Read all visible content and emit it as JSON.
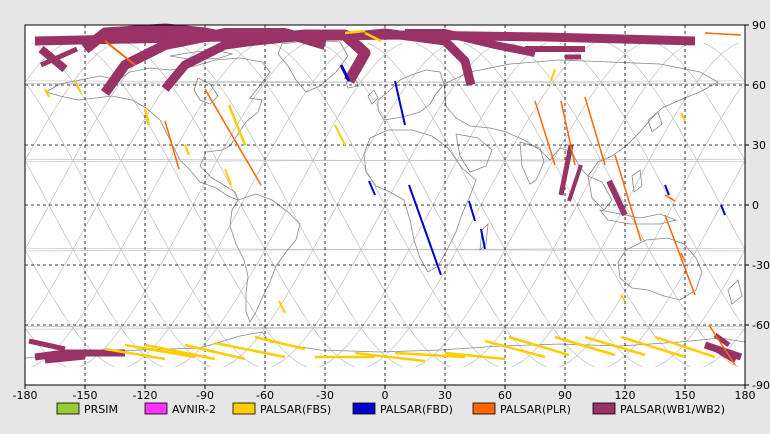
{
  "map": {
    "x_ticks": [
      "-180",
      "-150",
      "-120",
      "-90",
      "-60",
      "-30",
      "0",
      "30",
      "60",
      "90",
      "120",
      "150",
      "180"
    ],
    "y_ticks": [
      "90",
      "60",
      "30",
      "0",
      "-30",
      "-60",
      "-90"
    ],
    "grid": true,
    "colors": {
      "background": "#e6e6e6",
      "plot_area": "#ffffff",
      "grid": "#000000",
      "orbit": "#c0c0c0",
      "coast": "#888888"
    }
  },
  "legend": {
    "items": [
      {
        "label": "PRSIM",
        "color": "#99cc33"
      },
      {
        "label": "AVNIR-2",
        "color": "#ff33ff"
      },
      {
        "label": "PALSAR(FBS)",
        "color": "#ffcc00"
      },
      {
        "label": "PALSAR(FBD)",
        "color": "#0000cc"
      },
      {
        "label": "PALSAR(PLR)",
        "color": "#ff6600"
      },
      {
        "label": "PALSAR(WB1/WB2)",
        "color": "#993366"
      }
    ]
  },
  "chart_data": {
    "type": "scatter",
    "xlim": [
      -180,
      180
    ],
    "ylim": [
      -90,
      90
    ],
    "series": [
      {
        "name": "PALSAR(WB1/WB2)",
        "color": "#993366",
        "swaths": [
          {
            "points": [
              [
                -175,
                82
              ],
              [
                -80,
                84
              ],
              [
                10,
                85
              ],
              [
                80,
                84
              ],
              [
                155,
                82
              ]
            ],
            "width": 9
          },
          {
            "points": [
              [
                -150,
                78
              ],
              [
                -140,
                86
              ],
              [
                -110,
                88
              ],
              [
                -90,
                86
              ],
              [
                -70,
                82
              ],
              [
                -40,
                85
              ],
              [
                -20,
                85
              ],
              [
                -10,
                76
              ],
              [
                -18,
                62
              ]
            ],
            "width": 11
          },
          {
            "points": [
              [
                -140,
                56
              ],
              [
                -130,
                70
              ],
              [
                -110,
                80
              ],
              [
                -80,
                86
              ],
              [
                -50,
                86
              ],
              [
                -30,
                80
              ]
            ],
            "width": 10
          },
          {
            "points": [
              [
                -110,
                58
              ],
              [
                -100,
                70
              ],
              [
                -80,
                80
              ],
              [
                -50,
                84
              ],
              [
                -30,
                84
              ]
            ],
            "width": 9
          },
          {
            "points": [
              [
                -20,
                84
              ],
              [
                0,
                86
              ],
              [
                30,
                82
              ],
              [
                40,
                72
              ],
              [
                43,
                60
              ]
            ],
            "width": 9
          },
          {
            "points": [
              [
                10,
                86
              ],
              [
                30,
                86
              ],
              [
                55,
                80
              ],
              [
                75,
                76
              ]
            ],
            "width": 8
          },
          {
            "points": [
              [
                70,
                78
              ],
              [
                100,
                78
              ]
            ],
            "width": 6
          },
          {
            "points": [
              [
                90,
                74
              ],
              [
                98,
                74
              ]
            ],
            "width": 5
          },
          {
            "points": [
              [
                -172,
                78
              ],
              [
                -160,
                68
              ]
            ],
            "width": 8
          },
          {
            "points": [
              [
                -154,
                78
              ],
              [
                -172,
                70
              ]
            ],
            "width": 5
          },
          {
            "points": [
              [
                93,
                30
              ],
              [
                88,
                5
              ]
            ],
            "width": 5
          },
          {
            "points": [
              [
                98,
                20
              ],
              [
                92,
                2
              ]
            ],
            "width": 4
          },
          {
            "points": [
              [
                112,
                12
              ],
              [
                120,
                -5
              ]
            ],
            "width": 6
          },
          {
            "points": [
              [
                -178,
                -68
              ],
              [
                -160,
                -72
              ]
            ],
            "width": 5
          },
          {
            "points": [
              [
                -175,
                -76
              ],
              [
                -160,
                -74
              ],
              [
                -130,
                -74
              ]
            ],
            "width": 7
          },
          {
            "points": [
              [
                -170,
                -78
              ],
              [
                -150,
                -76
              ]
            ],
            "width": 5
          },
          {
            "points": [
              [
                165,
                -65
              ],
              [
                172,
                -70
              ]
            ],
            "width": 5
          },
          {
            "points": [
              [
                160,
                -70
              ],
              [
                178,
                -76
              ]
            ],
            "width": 7
          },
          {
            "points": [
              [
                165,
                -72
              ],
              [
                175,
                -78
              ]
            ],
            "width": 5
          }
        ]
      },
      {
        "name": "PALSAR(FBS)",
        "color": "#ffcc00",
        "swaths": [
          {
            "points": [
              [
                -140,
                -72
              ],
              [
                -110,
                -77
              ]
            ],
            "width": 2.5
          },
          {
            "points": [
              [
                -130,
                -70
              ],
              [
                -95,
                -76
              ]
            ],
            "width": 2.5
          },
          {
            "points": [
              [
                -120,
                -70
              ],
              [
                -85,
                -77
              ]
            ],
            "width": 2.5
          },
          {
            "points": [
              [
                -100,
                -70
              ],
              [
                -70,
                -77
              ]
            ],
            "width": 2.5
          },
          {
            "points": [
              [
                -85,
                -69
              ],
              [
                -50,
                -76
              ]
            ],
            "width": 2.5
          },
          {
            "points": [
              [
                -65,
                -66
              ],
              [
                -40,
                -72
              ]
            ],
            "width": 2.5
          },
          {
            "points": [
              [
                -35,
                -76
              ],
              [
                -5,
                -76
              ]
            ],
            "width": 2.5
          },
          {
            "points": [
              [
                -15,
                -74
              ],
              [
                20,
                -78
              ]
            ],
            "width": 2.5
          },
          {
            "points": [
              [
                5,
                -74
              ],
              [
                40,
                -76
              ]
            ],
            "width": 2.5
          },
          {
            "points": [
              [
                30,
                -74
              ],
              [
                60,
                -77
              ]
            ],
            "width": 2.5
          },
          {
            "points": [
              [
                50,
                -68
              ],
              [
                80,
                -76
              ]
            ],
            "width": 2.5
          },
          {
            "points": [
              [
                62,
                -66
              ],
              [
                92,
                -75
              ]
            ],
            "width": 2.5
          },
          {
            "points": [
              [
                85,
                -66
              ],
              [
                115,
                -75
              ]
            ],
            "width": 2.5
          },
          {
            "points": [
              [
                100,
                -66
              ],
              [
                130,
                -75
              ]
            ],
            "width": 2.5
          },
          {
            "points": [
              [
                118,
                -66
              ],
              [
                150,
                -76
              ]
            ],
            "width": 2.5
          },
          {
            "points": [
              [
                135,
                -66
              ],
              [
                165,
                -76
              ]
            ],
            "width": 2.5
          },
          {
            "points": [
              [
                -20,
                86
              ],
              [
                -10,
                87
              ]
            ],
            "width": 2.5
          },
          {
            "points": [
              [
                -10,
                86
              ],
              [
                -2,
                82
              ]
            ],
            "width": 2.5
          },
          {
            "points": [
              [
                -78,
                50
              ],
              [
                -70,
                30
              ]
            ],
            "width": 2.5
          },
          {
            "points": [
              [
                -120,
                48
              ],
              [
                -118,
                40
              ]
            ],
            "width": 2.5
          },
          {
            "points": [
              [
                -155,
                62
              ],
              [
                -152,
                56
              ]
            ],
            "width": 2
          },
          {
            "points": [
              [
                -170,
                58
              ],
              [
                -168,
                54
              ]
            ],
            "width": 2
          },
          {
            "points": [
              [
                -100,
                30
              ],
              [
                -98,
                25
              ]
            ],
            "width": 2
          },
          {
            "points": [
              [
                -80,
                18
              ],
              [
                -77,
                10
              ]
            ],
            "width": 2
          },
          {
            "points": [
              [
                -25,
                40
              ],
              [
                -20,
                30
              ]
            ],
            "width": 2
          },
          {
            "points": [
              [
                85,
                68
              ],
              [
                83,
                62
              ]
            ],
            "width": 2
          },
          {
            "points": [
              [
                148,
                46
              ],
              [
                150,
                42
              ]
            ],
            "width": 2
          },
          {
            "points": [
              [
                -53,
                -48
              ],
              [
                -50,
                -54
              ]
            ],
            "width": 2
          },
          {
            "points": [
              [
                118,
                -45
              ],
              [
                120,
                -48
              ]
            ],
            "width": 2
          }
        ]
      },
      {
        "name": "PALSAR(FBD)",
        "color": "#0000cc",
        "swaths": [
          {
            "points": [
              [
                -22,
                70
              ],
              [
                -18,
                62
              ]
            ],
            "width": 3
          },
          {
            "points": [
              [
                5,
                62
              ],
              [
                10,
                40
              ]
            ],
            "width": 2
          },
          {
            "points": [
              [
                12,
                10
              ],
              [
                28,
                -35
              ]
            ],
            "width": 2
          },
          {
            "points": [
              [
                -8,
                12
              ],
              [
                -5,
                5
              ]
            ],
            "width": 2
          },
          {
            "points": [
              [
                42,
                2
              ],
              [
                45,
                -8
              ]
            ],
            "width": 2
          },
          {
            "points": [
              [
                48,
                -12
              ],
              [
                50,
                -22
              ]
            ],
            "width": 2
          },
          {
            "points": [
              [
                140,
                10
              ],
              [
                142,
                5
              ]
            ],
            "width": 2
          },
          {
            "points": [
              [
                168,
                0
              ],
              [
                170,
                -5
              ]
            ],
            "width": 2
          }
        ]
      },
      {
        "name": "PALSAR(PLR)",
        "color": "#ff6600",
        "swaths": [
          {
            "points": [
              [
                -140,
                82
              ],
              [
                -125,
                70
              ]
            ],
            "width": 2
          },
          {
            "points": [
              [
                -90,
                58
              ],
              [
                -62,
                10
              ]
            ],
            "width": 1.5
          },
          {
            "points": [
              [
                -110,
                42
              ],
              [
                -103,
                18
              ]
            ],
            "width": 1.5
          },
          {
            "points": [
              [
                75,
                52
              ],
              [
                85,
                20
              ]
            ],
            "width": 1.5
          },
          {
            "points": [
              [
                88,
                52
              ],
              [
                95,
                20
              ]
            ],
            "width": 1.5
          },
          {
            "points": [
              [
                100,
                54
              ],
              [
                110,
                20
              ]
            ],
            "width": 1.5
          },
          {
            "points": [
              [
                115,
                25
              ],
              [
                128,
                -18
              ]
            ],
            "width": 1.5
          },
          {
            "points": [
              [
                140,
                -5
              ],
              [
                155,
                -45
              ]
            ],
            "width": 1.5
          },
          {
            "points": [
              [
                162,
                -60
              ],
              [
                175,
                -80
              ]
            ],
            "width": 1.5
          },
          {
            "points": [
              [
                148,
                -24
              ],
              [
                150,
                -28
              ]
            ],
            "width": 1.5
          },
          {
            "points": [
              [
                140,
                5
              ],
              [
                145,
                2
              ]
            ],
            "width": 1.5
          },
          {
            "points": [
              [
                160,
                86
              ],
              [
                178,
                85
              ]
            ],
            "width": 1.5
          }
        ]
      }
    ]
  }
}
